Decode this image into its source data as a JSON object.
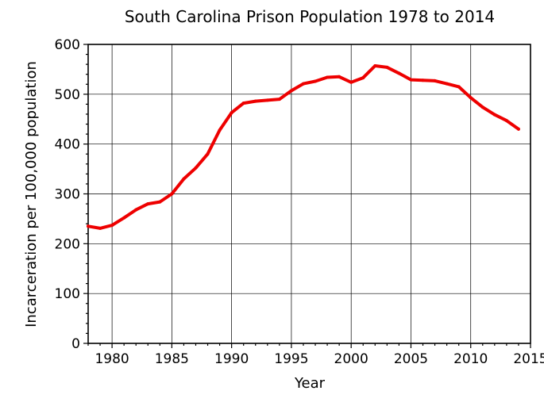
{
  "chart_data": {
    "type": "line",
    "title": "South Carolina Prison Population 1978 to 2014",
    "xlabel": "Year",
    "ylabel": "Incarceration per 100,000 population",
    "xlim": [
      1978,
      2015
    ],
    "ylim": [
      0,
      600
    ],
    "x_ticks": [
      1980,
      1985,
      1990,
      1995,
      2000,
      2005,
      2010,
      2015
    ],
    "y_ticks": [
      0,
      100,
      200,
      300,
      400,
      500,
      600
    ],
    "x_tick_labels": [
      "1980",
      "1985",
      "1990",
      "1995",
      "2000",
      "2005",
      "2010",
      "2015"
    ],
    "y_tick_labels": [
      "0",
      "100",
      "200",
      "300",
      "400",
      "500",
      "600"
    ],
    "grid": true,
    "line_color": "#ee0000",
    "series": [
      {
        "x": [
          1978,
          1979,
          1980,
          1981,
          1982,
          1983,
          1984,
          1985,
          1986,
          1987,
          1988,
          1989,
          1990,
          1991,
          1992,
          1993,
          1994,
          1995,
          1996,
          1997,
          1998,
          1999,
          2000,
          2001,
          2002,
          2003,
          2004,
          2005,
          2006,
          2007,
          2008,
          2009,
          2010,
          2011,
          2012,
          2013,
          2014
        ],
        "values": [
          235,
          231,
          237,
          252,
          268,
          280,
          284,
          300,
          330,
          352,
          380,
          428,
          463,
          482,
          486,
          488,
          490,
          507,
          521,
          526,
          534,
          535,
          524,
          533,
          557,
          554,
          542,
          529,
          528,
          527,
          521,
          515,
          493,
          474,
          459,
          447,
          430
        ]
      }
    ]
  }
}
